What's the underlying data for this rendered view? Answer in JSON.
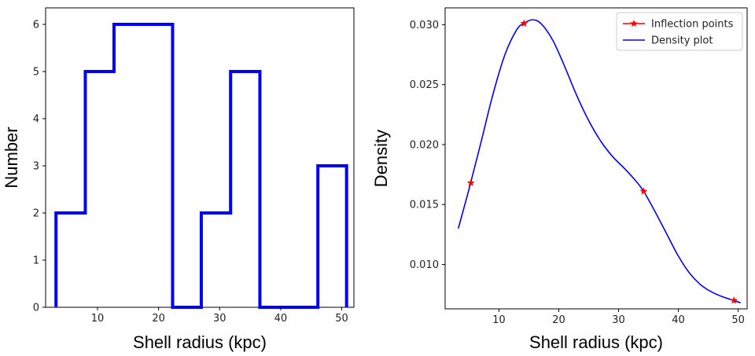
{
  "chart_data": [
    {
      "type": "histogram",
      "xlabel": "Shell radius (kpc)",
      "ylabel": "Number",
      "xlim": [
        1.5,
        52
      ],
      "ylim": [
        0,
        6.35
      ],
      "xticks": [
        10,
        20,
        30,
        40,
        50
      ],
      "yticks": [
        0,
        1,
        2,
        3,
        4,
        5,
        6
      ],
      "bin_edges": [
        3.2,
        8.0,
        12.7,
        17.5,
        22.3,
        27.0,
        31.8,
        36.6,
        41.3,
        46.1,
        50.8
      ],
      "counts": [
        2,
        5,
        6,
        6,
        0,
        2,
        5,
        0,
        0,
        3
      ],
      "color": "#0000ff",
      "grid": false
    },
    {
      "type": "line",
      "xlabel": "Shell radius (kpc)",
      "ylabel": "Density",
      "xlim": [
        1,
        51.5
      ],
      "ylim": [
        0.0063,
        0.0314
      ],
      "xticks": [
        10,
        20,
        30,
        40,
        50
      ],
      "yticks": [
        0.01,
        0.015,
        0.02,
        0.025,
        0.03
      ],
      "ytick_labels": [
        "0.010",
        "0.015",
        "0.020",
        "0.025",
        "0.030"
      ],
      "series": [
        {
          "name": "Density plot",
          "color": "#0000ff",
          "x": [
            3.2,
            5.0,
            7.0,
            9.0,
            11.0,
            13.0,
            14.2,
            15.5,
            17.0,
            19.0,
            21.0,
            23.0,
            25.0,
            27.0,
            29.0,
            31.0,
            33.0,
            34.2,
            36.0,
            38.0,
            40.0,
            42.0,
            44.0,
            46.0,
            48.0,
            49.3,
            50.4
          ],
          "y": [
            0.013,
            0.0163,
            0.0202,
            0.0242,
            0.0275,
            0.0296,
            0.0301,
            0.0304,
            0.0301,
            0.0287,
            0.0265,
            0.0241,
            0.022,
            0.0203,
            0.019,
            0.018,
            0.0169,
            0.0161,
            0.0145,
            0.0126,
            0.0107,
            0.0092,
            0.0082,
            0.0076,
            0.0072,
            0.007,
            0.0068
          ]
        },
        {
          "name": "Inflection points",
          "color": "#ff0000",
          "marker": "star",
          "x": [
            5.3,
            14.2,
            34.2,
            49.3
          ],
          "y": [
            0.0168,
            0.0301,
            0.0161,
            0.007
          ]
        }
      ],
      "legend": {
        "location": "top-right",
        "entries": [
          {
            "label": "Inflection points",
            "color": "#ff0000",
            "marker": "star"
          },
          {
            "label": "Density plot",
            "color": "#0000ff",
            "marker": "line"
          }
        ]
      },
      "grid": false
    }
  ]
}
